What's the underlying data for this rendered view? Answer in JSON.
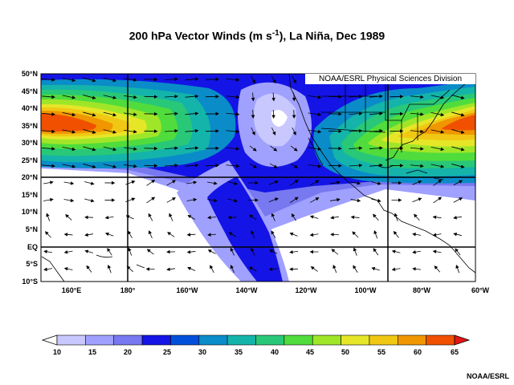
{
  "title_main": "200 hPa Vector Winds (m s",
  "title_exp": "-1",
  "title_rest": "), La  Niña, Dec 1989",
  "credit": "NOAA/ESRL Physical Sciences Division",
  "footer": "NOAA/ESRL",
  "lat_labels": [
    "50°N",
    "45°N",
    "40°N",
    "35°N",
    "30°N",
    "25°N",
    "20°N",
    "15°N",
    "10°N",
    "5°N",
    "EQ",
    "5°S",
    "10°S"
  ],
  "lon_labels": [
    "160°E",
    "180°",
    "160°W",
    "140°W",
    "120°W",
    "100°W",
    "80°W",
    "60°W"
  ],
  "colorbar": {
    "labels": [
      "10",
      "15",
      "20",
      "25",
      "30",
      "35",
      "40",
      "45",
      "50",
      "55",
      "60",
      "65"
    ],
    "colors": [
      "#ffffff",
      "#c8c8ff",
      "#a0a0ff",
      "#7878f0",
      "#1414e6",
      "#0050dc",
      "#0a8cc8",
      "#14b4aa",
      "#28c878",
      "#50dc3c",
      "#a0e628",
      "#e6e628",
      "#f0c814",
      "#f09600",
      "#f05000",
      "#e61414"
    ]
  },
  "colors": {
    "background": "#ffffff",
    "land_outline": "#000000",
    "arrow": "#000000"
  }
}
